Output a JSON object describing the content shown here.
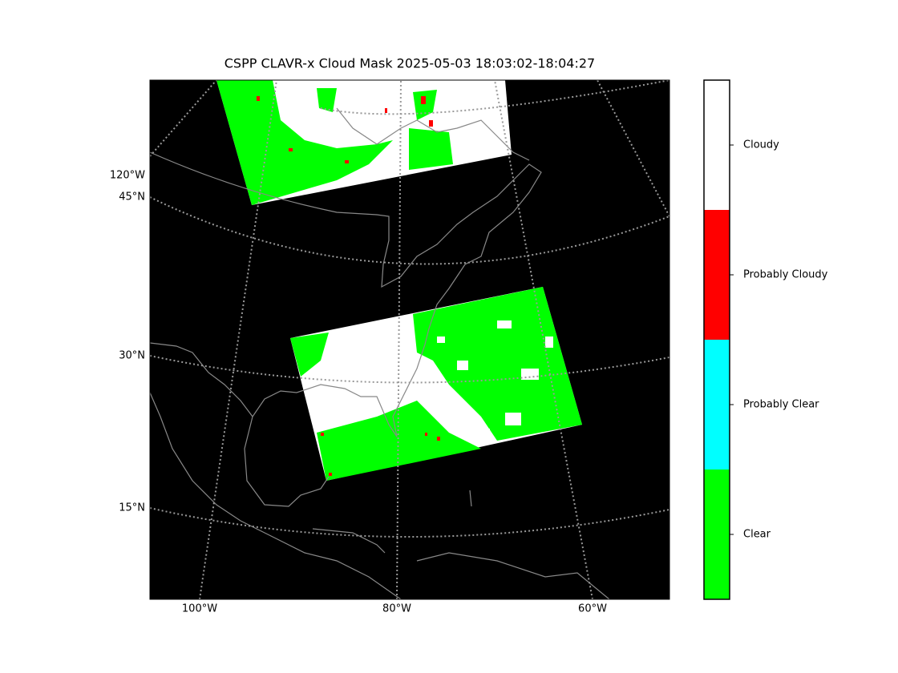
{
  "title": "CSPP CLAVR-x Cloud Mask 2025-05-03 18:03:02-18:04:27",
  "map": {
    "left_labels": [
      "120°W",
      "45°N",
      "30°N",
      "15°N"
    ],
    "bottom_labels": [
      "100°W",
      "80°W",
      "60°W"
    ]
  },
  "colorbar": {
    "classes": [
      {
        "label": "Cloudy",
        "color": "#ffffff"
      },
      {
        "label": "Probably Cloudy",
        "color": "#ff0000"
      },
      {
        "label": "Probably Clear",
        "color": "#00ffff"
      },
      {
        "label": "Clear",
        "color": "#00ff00"
      }
    ]
  }
}
